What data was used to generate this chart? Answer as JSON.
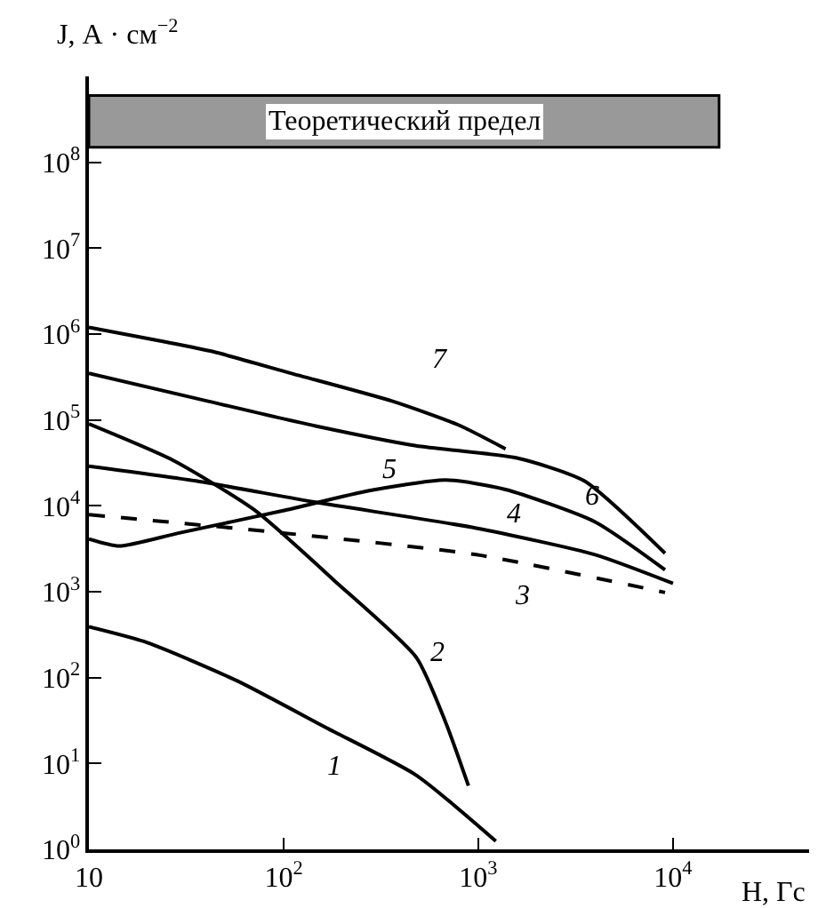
{
  "chart_data": {
    "type": "line",
    "xlabel": "H, Гс",
    "ylabel": "J, А · см$^{−2}$",
    "log": "xy",
    "grid": false,
    "legend": false,
    "line_style": "solid",
    "marker": "none",
    "xlim": [
      10,
      50000
    ],
    "ylim": [
      1,
      1000000000
    ],
    "xticks": [
      10,
      {
        "value": 100,
        "label": "10$^{2}$"
      },
      {
        "value": 1000,
        "label": "10$^{3}$"
      },
      {
        "value": 10000,
        "label": "10$^{4}$"
      }
    ],
    "yticks": [
      {
        "value": 1,
        "label": "10$^{0}$"
      },
      {
        "value": 10,
        "label": "10$^{1}$"
      },
      {
        "value": 100,
        "label": "10$^{2}$"
      },
      {
        "value": 1000,
        "label": "10$^{3}$"
      },
      {
        "value": 10000,
        "label": "10$^{4}$"
      },
      {
        "value": 100000,
        "label": "10$^{5}$"
      },
      {
        "value": 1000000,
        "label": "10$^{6}$"
      },
      {
        "value": 10000000,
        "label": "10$^{7}$"
      },
      {
        "value": 100000000,
        "label": "10$^{8}$"
      }
    ],
    "bands": [
      {
        "axis": "y",
        "from": 150000000,
        "to": 600000000,
        "label": "Теоретический предел",
        "color": "#999999"
      }
    ],
    "series": [
      {
        "name": "1",
        "color": "#000000",
        "x": [
          10,
          20,
          57.5,
          166,
          480,
          1230
        ],
        "values": [
          390,
          255,
          92,
          26,
          7.3,
          1.25
        ]
      },
      {
        "name": "2",
        "color": "#000000",
        "x": [
          10,
          27,
          71,
          182,
          480,
          680,
          890
        ],
        "values": [
          90000,
          34000,
          8900,
          1350,
          172,
          30,
          5.5
        ]
      },
      {
        "name": "3",
        "color": "#000000",
        "line_style": "dashed",
        "x": [
          10,
          102,
          977,
          9100
        ],
        "values": [
          7900,
          4800,
          2700,
          980
        ]
      },
      {
        "name": "4",
        "color": "#000000",
        "x": [
          10,
          35.5,
          146,
          977,
          3980,
          10000
        ],
        "values": [
          29000,
          19500,
          11000,
          5500,
          2700,
          1250
        ]
      },
      {
        "name": "5",
        "color": "#000000",
        "x": [
          10,
          14.3,
          28.7,
          102,
          275,
          680,
          1380,
          3980,
          9100
        ],
        "values": [
          4100,
          3400,
          4800,
          8900,
          15000,
          20000,
          15500,
          6500,
          1800
        ]
      },
      {
        "name": "6",
        "color": "#000000",
        "x": [
          10,
          41,
          146,
          480,
          1580,
          3500,
          9100
        ],
        "values": [
          350000,
          165000,
          85000,
          50000,
          36000,
          19500,
          2800
        ]
      },
      {
        "name": "7",
        "color": "#000000",
        "x": [
          10,
          23.3,
          43.9,
          109,
          363,
          794,
          1380
        ],
        "values": [
          1200000,
          830000,
          620000,
          350000,
          165000,
          87000,
          46000
        ]
      }
    ]
  }
}
